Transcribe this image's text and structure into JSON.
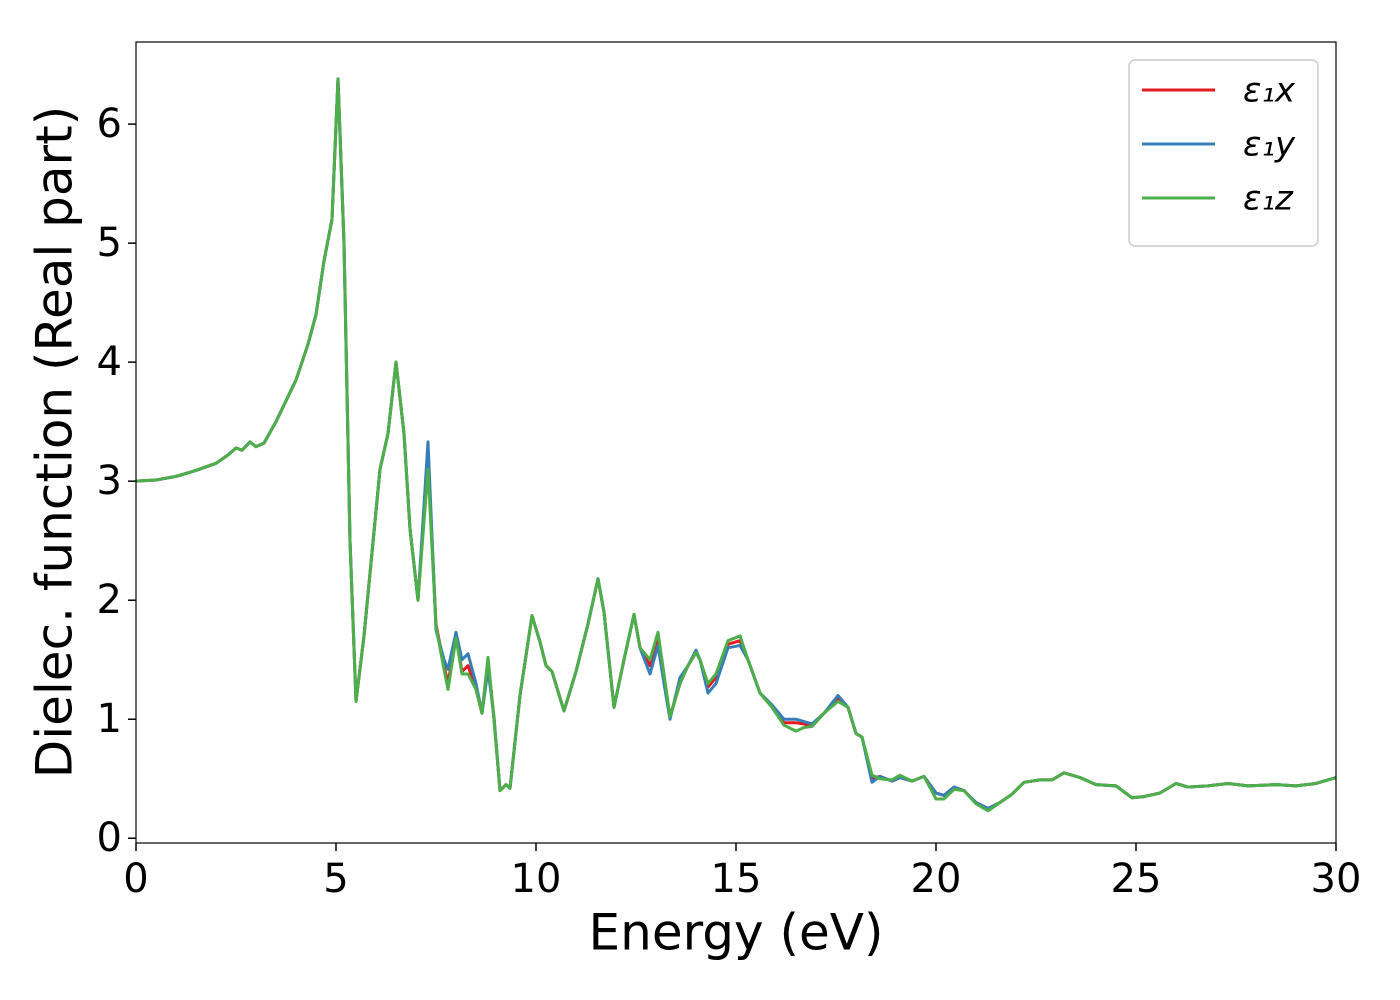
{
  "chart_data": {
    "type": "line",
    "xlabel": "Energy (eV)",
    "ylabel": "Dielec. function (Real part)",
    "xlim": [
      0,
      30
    ],
    "ylim": [
      -0.04,
      6.69
    ],
    "xticks": [
      0,
      5,
      10,
      15,
      20,
      25,
      30
    ],
    "yticks": [
      0,
      1,
      2,
      3,
      4,
      5,
      6
    ],
    "legend": "upper right",
    "grid": false,
    "x": [
      0,
      0.5,
      1,
      1.5,
      2,
      2.3,
      2.5,
      2.65,
      2.85,
      3.0,
      3.2,
      3.5,
      4.0,
      4.3,
      4.5,
      4.7,
      4.9,
      5.05,
      5.2,
      5.35,
      5.5,
      5.7,
      5.9,
      6.1,
      6.3,
      6.5,
      6.7,
      6.85,
      7.05,
      7.3,
      7.5,
      7.7,
      7.8,
      8.0,
      8.15,
      8.3,
      8.5,
      8.65,
      8.8,
      8.95,
      9.1,
      9.25,
      9.35,
      9.6,
      9.9,
      10.1,
      10.25,
      10.4,
      10.7,
      11.0,
      11.3,
      11.55,
      11.7,
      11.95,
      12.2,
      12.45,
      12.6,
      12.85,
      13.05,
      13.2,
      13.35,
      13.6,
      13.8,
      14.0,
      14.1,
      14.3,
      14.5,
      14.8,
      15.1,
      15.3,
      15.6,
      15.9,
      16.2,
      16.5,
      16.7,
      16.9,
      17.2,
      17.55,
      17.8,
      18.0,
      18.15,
      18.4,
      18.6,
      18.9,
      19.1,
      19.4,
      19.7,
      20.0,
      20.2,
      20.45,
      20.7,
      21.0,
      21.3,
      21.6,
      21.9,
      22.2,
      22.6,
      22.9,
      23.2,
      23.6,
      24.0,
      24.5,
      24.9,
      25.2,
      25.6,
      26.0,
      26.3,
      26.8,
      27.3,
      27.8,
      28.5,
      29.0,
      29.5,
      30
    ],
    "series": [
      {
        "name": "ε₁x",
        "color": "#e41a1c",
        "values": [
          3.0,
          3.01,
          3.04,
          3.09,
          3.15,
          3.22,
          3.28,
          3.26,
          3.33,
          3.29,
          3.32,
          3.5,
          3.85,
          4.15,
          4.4,
          4.85,
          5.2,
          6.38,
          5.0,
          2.5,
          1.15,
          1.7,
          2.4,
          3.1,
          3.4,
          4.0,
          3.4,
          2.6,
          2.0,
          3.2,
          1.8,
          1.45,
          1.3,
          1.7,
          1.4,
          1.45,
          1.25,
          1.05,
          1.5,
          1.0,
          0.4,
          0.45,
          0.42,
          1.2,
          1.87,
          1.65,
          1.45,
          1.4,
          1.07,
          1.4,
          1.8,
          2.18,
          1.9,
          1.1,
          1.5,
          1.88,
          1.6,
          1.45,
          1.68,
          1.35,
          1.02,
          1.3,
          1.45,
          1.56,
          1.5,
          1.27,
          1.35,
          1.63,
          1.66,
          1.5,
          1.22,
          1.1,
          0.97,
          0.97,
          0.96,
          0.94,
          1.05,
          1.18,
          1.1,
          0.88,
          0.85,
          0.5,
          0.52,
          0.48,
          0.51,
          0.48,
          0.52,
          0.38,
          0.36,
          0.43,
          0.4,
          0.3,
          0.25,
          0.3,
          0.37,
          0.47,
          0.49,
          0.49,
          0.55,
          0.51,
          0.45,
          0.44,
          0.34,
          0.35,
          0.38,
          0.46,
          0.43,
          0.44,
          0.46,
          0.44,
          0.45,
          0.44,
          0.46,
          0.51
        ]
      },
      {
        "name": "ε₁y",
        "color": "#377eb8",
        "values": [
          3.0,
          3.01,
          3.04,
          3.09,
          3.15,
          3.22,
          3.28,
          3.26,
          3.33,
          3.29,
          3.32,
          3.5,
          3.85,
          4.15,
          4.4,
          4.85,
          5.2,
          6.38,
          5.0,
          2.5,
          1.15,
          1.7,
          2.4,
          3.1,
          3.4,
          4.0,
          3.4,
          2.6,
          2.0,
          3.33,
          1.75,
          1.5,
          1.42,
          1.73,
          1.5,
          1.55,
          1.3,
          1.05,
          1.42,
          1.02,
          0.4,
          0.45,
          0.42,
          1.2,
          1.87,
          1.65,
          1.45,
          1.4,
          1.07,
          1.4,
          1.8,
          2.18,
          1.9,
          1.1,
          1.5,
          1.88,
          1.6,
          1.38,
          1.62,
          1.3,
          1.0,
          1.35,
          1.45,
          1.58,
          1.5,
          1.22,
          1.3,
          1.6,
          1.62,
          1.5,
          1.22,
          1.12,
          1.0,
          1.0,
          0.98,
          0.96,
          1.05,
          1.2,
          1.1,
          0.88,
          0.85,
          0.47,
          0.52,
          0.48,
          0.51,
          0.48,
          0.52,
          0.38,
          0.36,
          0.43,
          0.4,
          0.3,
          0.25,
          0.3,
          0.37,
          0.47,
          0.49,
          0.49,
          0.55,
          0.51,
          0.45,
          0.44,
          0.34,
          0.35,
          0.38,
          0.46,
          0.43,
          0.44,
          0.46,
          0.44,
          0.45,
          0.44,
          0.46,
          0.51
        ]
      },
      {
        "name": "ε₁z",
        "color": "#4daf4a",
        "values": [
          3.0,
          3.01,
          3.04,
          3.09,
          3.15,
          3.22,
          3.28,
          3.26,
          3.33,
          3.29,
          3.32,
          3.5,
          3.85,
          4.15,
          4.4,
          4.85,
          5.2,
          6.38,
          5.0,
          2.5,
          1.15,
          1.7,
          2.4,
          3.1,
          3.4,
          4.0,
          3.4,
          2.6,
          2.0,
          3.1,
          1.78,
          1.42,
          1.25,
          1.68,
          1.38,
          1.38,
          1.25,
          1.05,
          1.52,
          1.0,
          0.4,
          0.45,
          0.42,
          1.2,
          1.87,
          1.65,
          1.45,
          1.4,
          1.07,
          1.4,
          1.8,
          2.18,
          1.9,
          1.1,
          1.5,
          1.88,
          1.6,
          1.5,
          1.73,
          1.38,
          1.02,
          1.3,
          1.45,
          1.56,
          1.5,
          1.3,
          1.38,
          1.66,
          1.7,
          1.5,
          1.22,
          1.1,
          0.95,
          0.9,
          0.93,
          0.94,
          1.05,
          1.15,
          1.1,
          0.88,
          0.85,
          0.53,
          0.5,
          0.49,
          0.53,
          0.48,
          0.52,
          0.33,
          0.33,
          0.41,
          0.4,
          0.29,
          0.23,
          0.3,
          0.37,
          0.47,
          0.49,
          0.49,
          0.55,
          0.51,
          0.45,
          0.44,
          0.34,
          0.35,
          0.38,
          0.46,
          0.43,
          0.44,
          0.46,
          0.44,
          0.45,
          0.44,
          0.46,
          0.51
        ]
      }
    ]
  }
}
